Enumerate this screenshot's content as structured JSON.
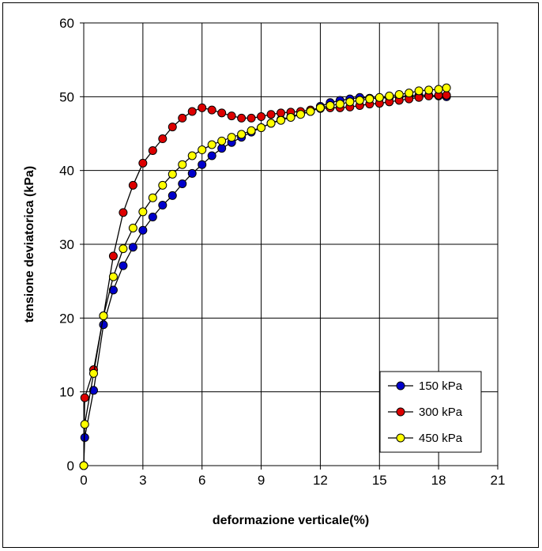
{
  "chart_data": {
    "type": "scatter",
    "xlabel": "deformazione verticale(%)",
    "ylabel": "tensione deviatorica (kPa)",
    "xlim": [
      0,
      21
    ],
    "ylim": [
      0,
      60
    ],
    "xticks": [
      "0",
      "3",
      "6",
      "9",
      "12",
      "15",
      "18",
      "21"
    ],
    "yticks": [
      "0",
      "10",
      "20",
      "30",
      "40",
      "50",
      "60"
    ],
    "grid": true,
    "legend_position": "bottom-right",
    "series": [
      {
        "name": "150 kPa",
        "color": "#0000cc",
        "points": [
          [
            0,
            0
          ],
          [
            0.05,
            3.8
          ],
          [
            0.5,
            10.2
          ],
          [
            1,
            19.1
          ],
          [
            1.5,
            23.8
          ],
          [
            2,
            27.1
          ],
          [
            2.5,
            29.6
          ],
          [
            3,
            31.9
          ],
          [
            3.5,
            33.7
          ],
          [
            4,
            35.3
          ],
          [
            4.5,
            36.6
          ],
          [
            5,
            38.2
          ],
          [
            5.5,
            39.6
          ],
          [
            6,
            40.8
          ],
          [
            6.5,
            42
          ],
          [
            7,
            43
          ],
          [
            7.5,
            43.8
          ],
          [
            8,
            44.5
          ],
          [
            8.5,
            45.2
          ],
          [
            9,
            45.8
          ],
          [
            9.5,
            46.4
          ],
          [
            10,
            46.9
          ],
          [
            10.5,
            47.3
          ],
          [
            11,
            47.7
          ],
          [
            11.5,
            48
          ],
          [
            12,
            48.7
          ],
          [
            12.5,
            49.2
          ],
          [
            13,
            49.5
          ],
          [
            13.5,
            49.7
          ],
          [
            14,
            49.9
          ],
          [
            14.5,
            49.8
          ],
          [
            15,
            49.8
          ],
          [
            15.5,
            49.9
          ],
          [
            16,
            50
          ],
          [
            16.5,
            50.1
          ],
          [
            17,
            50.2
          ],
          [
            17.5,
            50.2
          ],
          [
            18,
            50.1
          ],
          [
            18.4,
            50
          ]
        ]
      },
      {
        "name": "300 kPa",
        "color": "#dd0000",
        "points": [
          [
            0,
            0
          ],
          [
            0.05,
            9.2
          ],
          [
            0.5,
            13
          ],
          [
            1,
            20.3
          ],
          [
            1.5,
            28.4
          ],
          [
            2,
            34.3
          ],
          [
            2.5,
            38
          ],
          [
            3,
            41
          ],
          [
            3.5,
            42.7
          ],
          [
            4,
            44.3
          ],
          [
            4.5,
            45.9
          ],
          [
            5,
            47.1
          ],
          [
            5.5,
            48
          ],
          [
            6,
            48.5
          ],
          [
            6.5,
            48.2
          ],
          [
            7,
            47.8
          ],
          [
            7.5,
            47.4
          ],
          [
            8,
            47.1
          ],
          [
            8.5,
            47.1
          ],
          [
            9,
            47.3
          ],
          [
            9.5,
            47.6
          ],
          [
            10,
            47.8
          ],
          [
            10.5,
            47.9
          ],
          [
            11,
            48
          ],
          [
            11.5,
            48.2
          ],
          [
            12,
            48.4
          ],
          [
            12.5,
            48.5
          ],
          [
            13,
            48.5
          ],
          [
            13.5,
            48.6
          ],
          [
            14,
            48.8
          ],
          [
            14.5,
            49
          ],
          [
            15,
            49.1
          ],
          [
            15.5,
            49.3
          ],
          [
            16,
            49.5
          ],
          [
            16.5,
            49.7
          ],
          [
            17,
            49.9
          ],
          [
            17.5,
            50.1
          ],
          [
            18,
            50.2
          ],
          [
            18.4,
            50.2
          ]
        ]
      },
      {
        "name": "450 kPa",
        "color": "#ffff00",
        "points": [
          [
            0,
            0
          ],
          [
            0.05,
            5.6
          ],
          [
            0.5,
            12.5
          ],
          [
            1,
            20.3
          ],
          [
            1.5,
            25.6
          ],
          [
            2,
            29.4
          ],
          [
            2.5,
            32.2
          ],
          [
            3,
            34.4
          ],
          [
            3.5,
            36.3
          ],
          [
            4,
            38
          ],
          [
            4.5,
            39.5
          ],
          [
            5,
            40.8
          ],
          [
            5.5,
            42
          ],
          [
            6,
            42.8
          ],
          [
            6.5,
            43.5
          ],
          [
            7,
            44
          ],
          [
            7.5,
            44.5
          ],
          [
            8,
            44.9
          ],
          [
            8.5,
            45.4
          ],
          [
            9,
            45.8
          ],
          [
            9.5,
            46.4
          ],
          [
            10,
            46.8
          ],
          [
            10.5,
            47.2
          ],
          [
            11,
            47.6
          ],
          [
            11.5,
            48
          ],
          [
            12,
            48.5
          ],
          [
            12.5,
            48.8
          ],
          [
            13,
            49
          ],
          [
            13.5,
            49.3
          ],
          [
            14,
            49.5
          ],
          [
            14.5,
            49.7
          ],
          [
            15,
            49.9
          ],
          [
            15.5,
            50.1
          ],
          [
            16,
            50.3
          ],
          [
            16.5,
            50.5
          ],
          [
            17,
            50.8
          ],
          [
            17.5,
            50.9
          ],
          [
            18,
            51
          ],
          [
            18.4,
            51.2
          ]
        ]
      }
    ]
  }
}
